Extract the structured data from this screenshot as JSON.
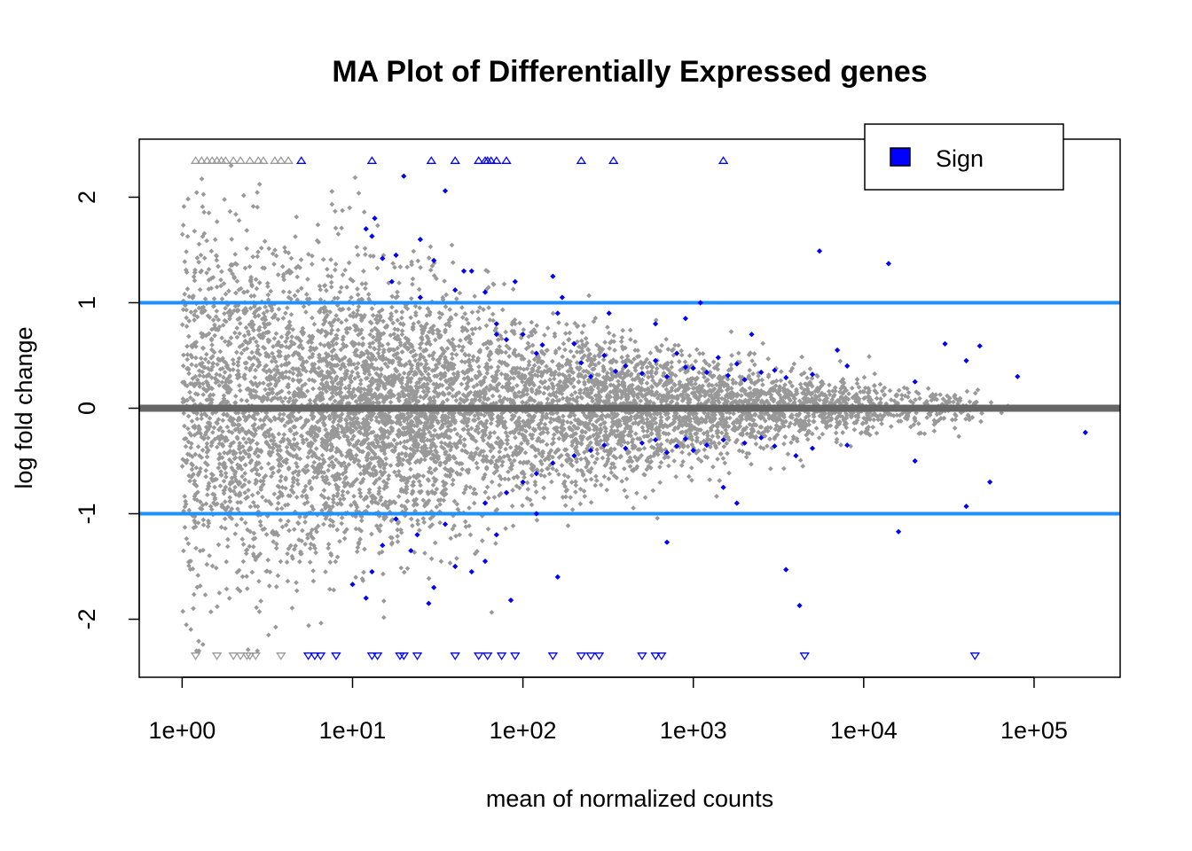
{
  "chart_data": {
    "type": "scatter",
    "title": "MA Plot of Differentially Expressed genes",
    "xlabel": "mean of normalized counts",
    "ylabel": "log fold change",
    "x_scale": "log10",
    "xlim": [
      0.56,
      320000
    ],
    "ylim": [
      -2.55,
      2.55
    ],
    "x_ticks": [
      {
        "value": 1,
        "label": "1e+00"
      },
      {
        "value": 10,
        "label": "1e+01"
      },
      {
        "value": 100,
        "label": "1e+02"
      },
      {
        "value": 1000,
        "label": "1e+03"
      },
      {
        "value": 10000,
        "label": "1e+04"
      },
      {
        "value": 100000,
        "label": "1e+05"
      }
    ],
    "y_ticks": [
      {
        "value": -2,
        "label": "-2"
      },
      {
        "value": -1,
        "label": "-1"
      },
      {
        "value": 0,
        "label": "0"
      },
      {
        "value": 1,
        "label": "1"
      },
      {
        "value": 2,
        "label": "2"
      }
    ],
    "reference_lines": [
      {
        "y": 0,
        "color": "#666666"
      },
      {
        "y": 1,
        "color": "#1E90FF"
      },
      {
        "y": -1,
        "color": "#1E90FF"
      }
    ],
    "clip_y": 2.35,
    "colors": {
      "not_significant": "#999999",
      "significant": "#0000FF",
      "zero_line": "#666666",
      "fc_line": "#1E90FF"
    },
    "legend": {
      "placement": "top-right",
      "entries": [
        {
          "label": "Sign",
          "color": "#0000FF"
        }
      ]
    },
    "series": [
      {
        "kind": "significant",
        "points": [
          [
            12,
            1.7
          ],
          [
            13,
            1.63
          ],
          [
            13.5,
            1.8
          ],
          [
            15,
            1.42
          ],
          [
            17,
            1.2
          ],
          [
            20,
            2.2
          ],
          [
            25,
            1.05
          ],
          [
            30,
            1.4
          ],
          [
            35,
            2.06
          ],
          [
            40,
            1.12
          ],
          [
            50,
            1.3
          ],
          [
            60,
            1.1
          ],
          [
            70,
            0.8
          ],
          [
            80,
            0.65
          ],
          [
            100,
            0.7
          ],
          [
            120,
            0.52
          ],
          [
            150,
            1.25
          ],
          [
            160,
            0.9
          ],
          [
            200,
            0.61
          ],
          [
            220,
            0.43
          ],
          [
            250,
            0.3
          ],
          [
            300,
            0.5
          ],
          [
            350,
            0.35
          ],
          [
            400,
            0.4
          ],
          [
            500,
            0.33
          ],
          [
            600,
            0.45
          ],
          [
            700,
            0.3
          ],
          [
            800,
            0.52
          ],
          [
            900,
            0.39
          ],
          [
            1000,
            0.38
          ],
          [
            1200,
            0.34
          ],
          [
            1400,
            0.48
          ],
          [
            1600,
            0.31
          ],
          [
            1800,
            0.42
          ],
          [
            2000,
            0.27
          ],
          [
            2500,
            0.34
          ],
          [
            3000,
            0.36
          ],
          [
            3500,
            0.29
          ],
          [
            5000,
            0.32
          ],
          [
            8000,
            0.4
          ],
          [
            14000,
            1.37
          ],
          [
            20000,
            0.25
          ],
          [
            30000,
            0.61
          ],
          [
            40000,
            0.45
          ],
          [
            48000,
            0.59
          ],
          [
            80000,
            0.3
          ],
          [
            7000,
            0.55
          ],
          [
            2200,
            0.7
          ],
          [
            1100,
            1.0
          ],
          [
            600,
            0.8
          ],
          [
            320,
            0.9
          ],
          [
            170,
            1.05
          ],
          [
            90,
            1.2
          ],
          [
            45,
            1.3
          ],
          [
            25,
            1.6
          ],
          [
            18,
            1.45
          ],
          [
            70,
            0.7
          ],
          [
            130,
            0.6
          ],
          [
            900,
            0.85
          ],
          [
            5500,
            1.49
          ],
          [
            10,
            -1.67
          ],
          [
            12,
            -1.8
          ],
          [
            13,
            -1.55
          ],
          [
            15,
            -1.3
          ],
          [
            18,
            -1.05
          ],
          [
            22,
            -1.35
          ],
          [
            28,
            -1.85
          ],
          [
            35,
            -1.1
          ],
          [
            40,
            -1.5
          ],
          [
            50,
            -1.55
          ],
          [
            60,
            -0.9
          ],
          [
            70,
            -1.2
          ],
          [
            80,
            -0.8
          ],
          [
            100,
            -0.7
          ],
          [
            120,
            -0.62
          ],
          [
            150,
            -0.52
          ],
          [
            200,
            -0.45
          ],
          [
            250,
            -0.4
          ],
          [
            300,
            -0.35
          ],
          [
            400,
            -0.38
          ],
          [
            500,
            -0.33
          ],
          [
            600,
            -0.3
          ],
          [
            700,
            -0.42
          ],
          [
            800,
            -0.36
          ],
          [
            900,
            -0.29
          ],
          [
            1000,
            -0.4
          ],
          [
            1200,
            -0.35
          ],
          [
            1500,
            -0.3
          ],
          [
            2000,
            -0.33
          ],
          [
            2500,
            -0.28
          ],
          [
            3000,
            -0.36
          ],
          [
            4000,
            -0.45
          ],
          [
            5000,
            -0.38
          ],
          [
            8000,
            -0.35
          ],
          [
            16000,
            -1.17
          ],
          [
            20000,
            -0.5
          ],
          [
            40000,
            -0.93
          ],
          [
            55000,
            -0.7
          ],
          [
            200000,
            -0.23
          ],
          [
            3500,
            -1.53
          ],
          [
            4200,
            -1.87
          ],
          [
            1800,
            -0.9
          ],
          [
            700,
            -1.27
          ],
          [
            120,
            -1.0
          ],
          [
            60,
            -1.45
          ],
          [
            30,
            -1.7
          ],
          [
            24,
            -1.2
          ],
          [
            85,
            -1.82
          ],
          [
            160,
            -1.6
          ],
          [
            1500,
            -0.75
          ]
        ]
      },
      {
        "kind": "significant_clipped",
        "points": [
          [
            5,
            2.35
          ],
          [
            13,
            2.35
          ],
          [
            29,
            2.35
          ],
          [
            40,
            2.35
          ],
          [
            55,
            2.35
          ],
          [
            60,
            2.35
          ],
          [
            62,
            2.35
          ],
          [
            65,
            2.35
          ],
          [
            70,
            2.35
          ],
          [
            80,
            2.35
          ],
          [
            220,
            2.35
          ],
          [
            340,
            2.35
          ],
          [
            1500,
            2.35
          ],
          [
            5.5,
            -2.35
          ],
          [
            6,
            -2.35
          ],
          [
            6.5,
            -2.35
          ],
          [
            8,
            -2.35
          ],
          [
            13,
            -2.35
          ],
          [
            14,
            -2.35
          ],
          [
            19,
            -2.35
          ],
          [
            20,
            -2.35
          ],
          [
            24,
            -2.35
          ],
          [
            40,
            -2.35
          ],
          [
            55,
            -2.35
          ],
          [
            62,
            -2.35
          ],
          [
            75,
            -2.35
          ],
          [
            90,
            -2.35
          ],
          [
            150,
            -2.35
          ],
          [
            220,
            -2.35
          ],
          [
            250,
            -2.35
          ],
          [
            280,
            -2.35
          ],
          [
            500,
            -2.35
          ],
          [
            600,
            -2.35
          ],
          [
            650,
            -2.35
          ],
          [
            4500,
            -2.35
          ],
          [
            45000,
            -2.35
          ]
        ]
      },
      {
        "kind": "not_significant_clipped",
        "points": [
          [
            1.2,
            2.35
          ],
          [
            1.3,
            2.35
          ],
          [
            1.4,
            2.35
          ],
          [
            1.5,
            2.35
          ],
          [
            1.6,
            2.35
          ],
          [
            1.7,
            2.35
          ],
          [
            1.8,
            2.35
          ],
          [
            2,
            2.35
          ],
          [
            2.2,
            2.35
          ],
          [
            2.5,
            2.35
          ],
          [
            2.8,
            2.35
          ],
          [
            3,
            2.35
          ],
          [
            3.5,
            2.35
          ],
          [
            3.8,
            2.35
          ],
          [
            4.2,
            2.35
          ],
          [
            1.2,
            -2.35
          ],
          [
            1.6,
            -2.35
          ],
          [
            2,
            -2.35
          ],
          [
            2.2,
            -2.35
          ],
          [
            2.4,
            -2.35
          ],
          [
            2.5,
            -2.35
          ],
          [
            2.7,
            -2.35
          ],
          [
            3.8,
            -2.35
          ]
        ]
      }
    ],
    "background_cloud": {
      "kind": "not_significant",
      "n": 7000,
      "x_range": [
        1,
        80000
      ],
      "spread_low_mean": 0.8,
      "spread_high_mean": 0.08
    }
  }
}
